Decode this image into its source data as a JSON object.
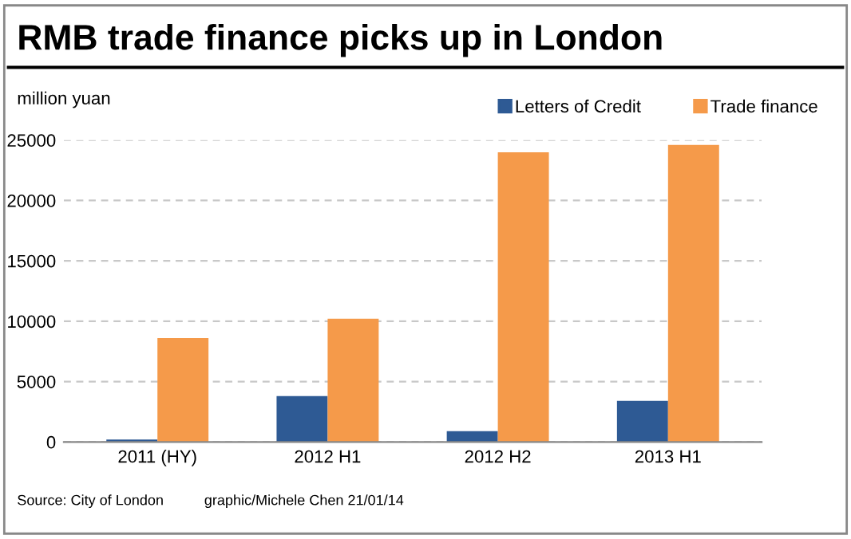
{
  "chart_data": {
    "type": "bar",
    "title": "RMB trade finance picks up in London",
    "ylabel": "million yuan",
    "categories": [
      "2011 (HY)",
      "2012 H1",
      "2012 H2",
      "2013 H1"
    ],
    "series": [
      {
        "name": "Letters of Credit",
        "color": "#2e5a94",
        "values": [
          200,
          3800,
          900,
          3400
        ]
      },
      {
        "name": "Trade finance",
        "color": "#f59a4a",
        "values": [
          8600,
          10200,
          24000,
          24600
        ]
      }
    ],
    "ylim": [
      0,
      25000
    ],
    "yticks": [
      0,
      5000,
      10000,
      15000,
      20000,
      25000
    ],
    "grid": "y",
    "legend": "top right",
    "annotations": [
      "Source: City of London",
      "graphic/Michele Chen 21/01/14"
    ]
  }
}
